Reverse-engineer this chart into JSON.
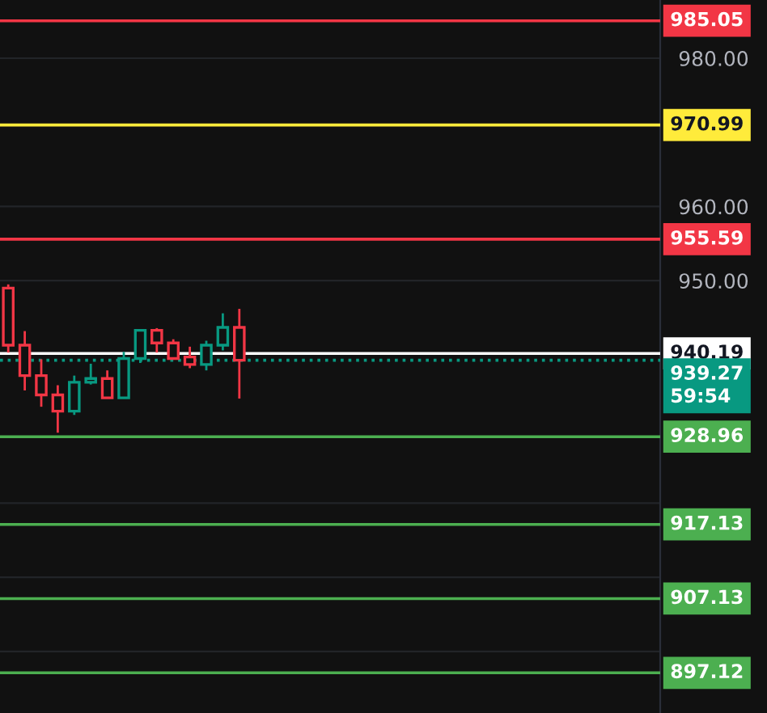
{
  "chart_data": {
    "type": "candlestick",
    "categories": [
      null,
      null,
      null,
      null,
      null,
      null,
      null,
      null,
      null,
      null,
      null,
      null,
      null,
      null,
      null,
      null,
      null,
      null,
      null,
      null,
      null,
      null,
      null,
      null,
      null,
      null,
      null,
      null,
      null,
      null,
      null,
      null,
      null,
      null,
      null,
      null,
      null,
      null,
      null,
      null
    ],
    "ohlc": [
      [
        949.0,
        949.5,
        940.3,
        941.3
      ],
      [
        941.3,
        943.2,
        935.2,
        937.2
      ],
      [
        937.2,
        939.4,
        933.0,
        934.6
      ],
      [
        934.6,
        935.9,
        929.5,
        932.4
      ],
      [
        932.4,
        937.2,
        931.9,
        936.3
      ],
      [
        936.3,
        938.8,
        936.0,
        936.8
      ],
      [
        936.8,
        937.9,
        934.2,
        934.2
      ],
      [
        934.2,
        940.4,
        934.2,
        939.5
      ],
      [
        939.5,
        943.3,
        938.9,
        943.3
      ],
      [
        943.3,
        943.6,
        940.3,
        941.6
      ],
      [
        941.6,
        942.1,
        939.5,
        939.5
      ],
      [
        939.7,
        941.1,
        938.2,
        938.7
      ],
      [
        938.7,
        941.9,
        937.9,
        941.3
      ],
      [
        941.3,
        945.6,
        940.6,
        943.7
      ],
      [
        943.7,
        946.2,
        934.1,
        939.27
      ],
      null,
      null,
      null,
      null,
      null,
      null,
      null,
      null,
      null,
      null,
      null,
      null,
      null,
      null,
      null,
      null,
      null,
      null,
      null,
      null,
      null,
      null,
      null,
      null,
      null
    ],
    "ylim": [
      891.7,
      987.85
    ],
    "yticks": [
      {
        "value": 900,
        "label": null
      },
      {
        "value": 910,
        "label": null
      },
      {
        "value": 920,
        "label": null
      },
      {
        "value": 950,
        "label": "950.00"
      },
      {
        "value": 960,
        "label": "960.00"
      },
      {
        "value": 980,
        "label": "980.00"
      }
    ],
    "grid": "y",
    "ref_lines": [
      {
        "axis": "y",
        "value": 985.05,
        "label": "985.05",
        "color": "#f23645"
      },
      {
        "axis": "y",
        "value": 970.99,
        "label": "970.99",
        "color": "#ffeb3b"
      },
      {
        "axis": "y",
        "value": 955.59,
        "label": "955.59",
        "color": "#f23645"
      },
      {
        "axis": "y",
        "value": 940.19,
        "label": "940.19",
        "color": "#ffffff"
      },
      {
        "axis": "y",
        "value": 939.27,
        "label": "939.27",
        "color": "#089981",
        "line_style": "dotted"
      },
      {
        "axis": "y",
        "value": 928.96,
        "label": "928.96",
        "color": "#4caf50"
      },
      {
        "axis": "y",
        "value": 917.13,
        "label": "917.13",
        "color": "#4caf50"
      },
      {
        "axis": "y",
        "value": 907.13,
        "label": "907.13",
        "color": "#4caf50"
      },
      {
        "axis": "y",
        "value": 897.12,
        "label": "897.12",
        "color": "#4caf50"
      }
    ],
    "annotations": [
      "59:54"
    ]
  }
}
